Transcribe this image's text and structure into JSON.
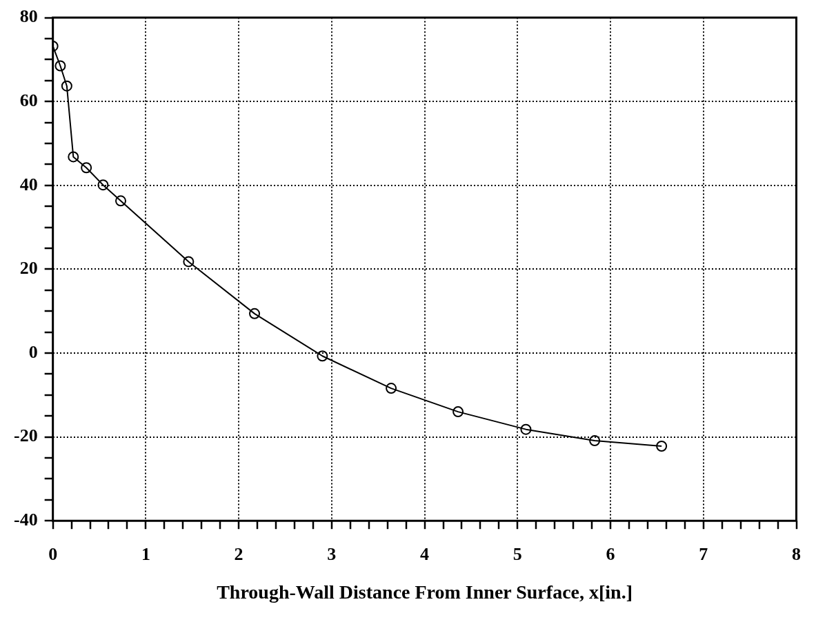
{
  "chart_data": {
    "type": "line",
    "xlabel": "Through-Wall Distance From Inner Surface, x[in.]",
    "series": [
      {
        "color": "#000000",
        "x": [
          0.0,
          0.08,
          0.15,
          0.22,
          0.36,
          0.54,
          0.73,
          1.46,
          2.17,
          2.9,
          3.64,
          4.36,
          5.09,
          5.83,
          6.55
        ],
        "values": [
          73.2,
          68.5,
          63.7,
          46.8,
          44.2,
          40.1,
          36.3,
          21.8,
          9.4,
          -0.7,
          -8.4,
          -14.0,
          -18.2,
          -20.9,
          -22.2
        ]
      }
    ],
    "xlim": [
      0,
      8
    ],
    "xticks": [
      0,
      {
        "value": 0.2,
        "label": null
      },
      {
        "value": 0.4,
        "label": null
      },
      {
        "value": 0.6,
        "label": null
      },
      {
        "value": 0.8,
        "label": null
      },
      1,
      {
        "value": 1.2,
        "label": null
      },
      {
        "value": 1.4,
        "label": null
      },
      {
        "value": 1.6,
        "label": null
      },
      {
        "value": 1.8,
        "label": null
      },
      2,
      {
        "value": 2.2,
        "label": null
      },
      {
        "value": 2.4,
        "label": null
      },
      {
        "value": 2.6,
        "label": null
      },
      {
        "value": 2.8,
        "label": null
      },
      3,
      {
        "value": 3.2,
        "label": null
      },
      {
        "value": 3.4,
        "label": null
      },
      {
        "value": 3.6,
        "label": null
      },
      {
        "value": 3.8,
        "label": null
      },
      4,
      {
        "value": 4.2,
        "label": null
      },
      {
        "value": 4.4,
        "label": null
      },
      {
        "value": 4.6,
        "label": null
      },
      {
        "value": 4.8,
        "label": null
      },
      5,
      {
        "value": 5.2,
        "label": null
      },
      {
        "value": 5.4,
        "label": null
      },
      {
        "value": 5.6,
        "label": null
      },
      {
        "value": 5.8,
        "label": null
      },
      6,
      {
        "value": 6.2,
        "label": null
      },
      {
        "value": 6.4,
        "label": null
      },
      {
        "value": 6.6,
        "label": null
      },
      {
        "value": 6.8,
        "label": null
      },
      7,
      {
        "value": 7.2,
        "label": null
      },
      {
        "value": 7.4,
        "label": null
      },
      {
        "value": 7.6,
        "label": null
      },
      {
        "value": 7.8,
        "label": null
      },
      8
    ],
    "ylim": [
      -40,
      80
    ],
    "yticks": [
      -40,
      {
        "value": -35,
        "label": null
      },
      {
        "value": -30,
        "label": null
      },
      {
        "value": -25,
        "label": null
      },
      -20,
      {
        "value": -15,
        "label": null
      },
      {
        "value": -10,
        "label": null
      },
      {
        "value": -5,
        "label": null
      },
      0,
      {
        "value": 5,
        "label": null
      },
      {
        "value": 10,
        "label": null
      },
      {
        "value": 15,
        "label": null
      },
      20,
      {
        "value": 25,
        "label": null
      },
      {
        "value": 30,
        "label": null
      },
      {
        "value": 35,
        "label": null
      },
      40,
      {
        "value": 45,
        "label": null
      },
      {
        "value": 50,
        "label": null
      },
      {
        "value": 55,
        "label": null
      },
      60,
      {
        "value": 65,
        "label": null
      },
      {
        "value": 70,
        "label": null
      },
      {
        "value": 75,
        "label": null
      },
      80
    ],
    "grid": true,
    "marker": "circle",
    "line_style": "solid",
    "legend": false
  }
}
